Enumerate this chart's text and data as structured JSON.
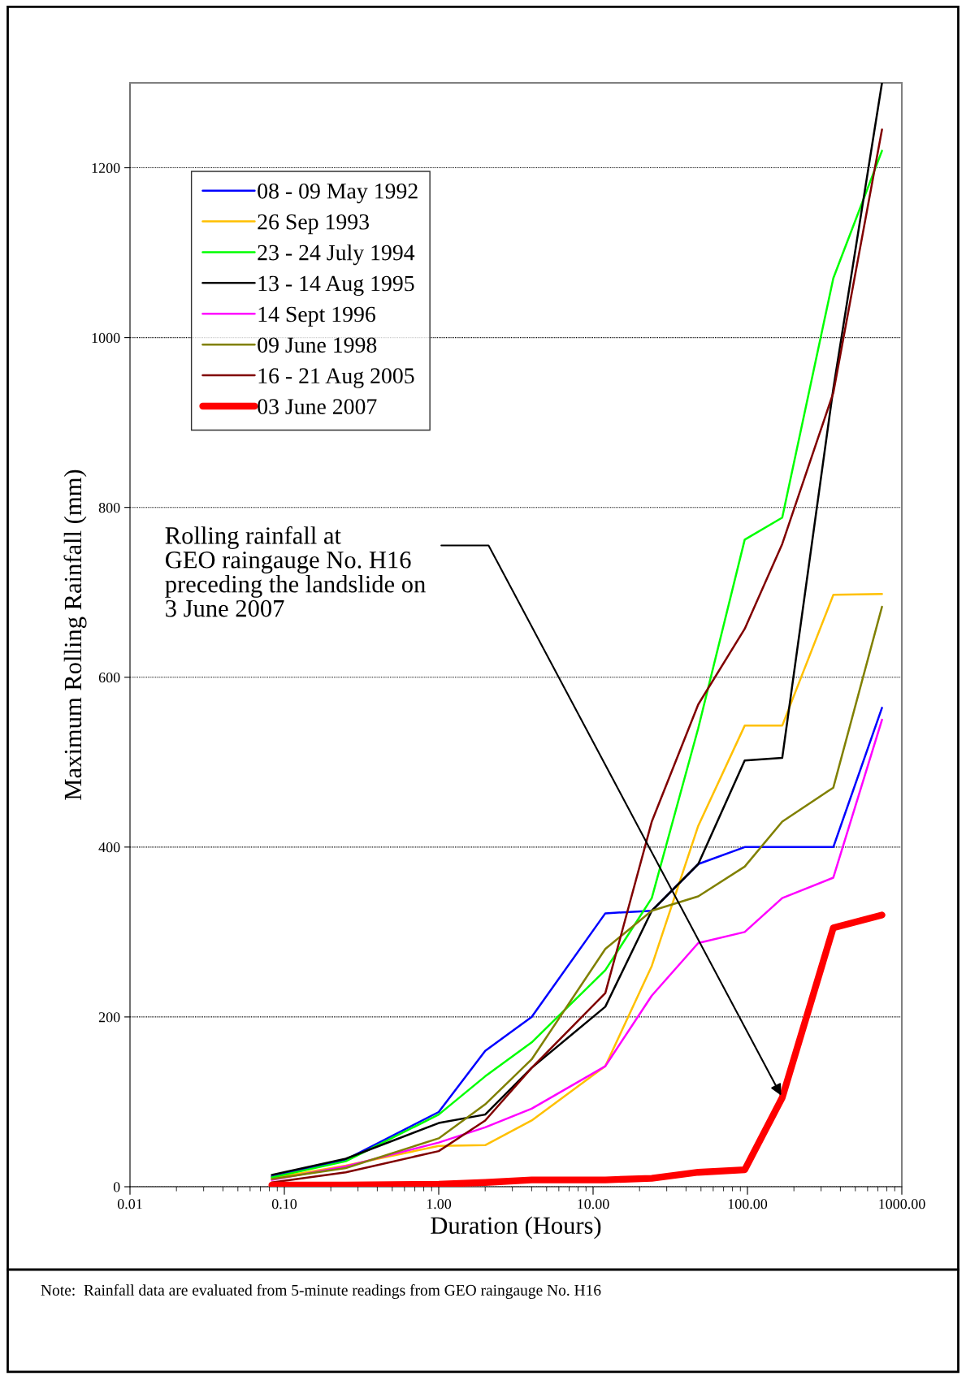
{
  "chart_data": {
    "type": "line",
    "xlabel": "Duration (Hours)",
    "ylabel": "Maximum Rolling Rainfall (mm)",
    "log": "x",
    "grid": "y",
    "legend": "top left",
    "line_style": "solid",
    "marker": "none",
    "x": [
      0.083,
      0.25,
      1,
      2,
      4,
      12,
      24,
      48,
      96,
      168,
      360,
      744
    ],
    "xlim": [
      0.01,
      1000
    ],
    "xticks": [
      {
        "value": 0.01,
        "label": "0.01"
      },
      {
        "value": 0.1,
        "label": "0.10"
      },
      {
        "value": 1,
        "label": "1.00"
      },
      {
        "value": 10,
        "label": "10.00"
      },
      {
        "value": 100,
        "label": "100.00"
      },
      {
        "value": 1000,
        "label": "1000.00"
      }
    ],
    "ylim": [
      0,
      1300
    ],
    "yticks": [
      0,
      200,
      400,
      600,
      800,
      1000,
      1200
    ],
    "series": [
      {
        "name": "08 - 09 May 1992",
        "color": "#0000ff",
        "values": [
          12,
          32,
          88,
          160,
          200,
          322,
          325,
          380,
          400,
          400,
          400,
          564
        ]
      },
      {
        "name": "26 Sep 1993",
        "color": "#ffc000",
        "values": [
          10,
          25,
          48,
          49,
          78,
          142,
          260,
          425,
          543,
          543,
          697,
          698
        ]
      },
      {
        "name": "23 - 24 July 1994",
        "color": "#00ff00",
        "values": [
          11,
          30,
          85,
          130,
          170,
          255,
          340,
          540,
          762,
          788,
          1070,
          1220
        ]
      },
      {
        "name": "13 - 14 Aug 1995",
        "color": "#000000",
        "values": [
          14,
          33,
          75,
          85,
          140,
          212,
          325,
          380,
          502,
          505,
          940,
          1300
        ]
      },
      {
        "name": "14 Sept 1996",
        "color": "#ff00ff",
        "values": [
          8,
          24,
          52,
          70,
          92,
          142,
          225,
          287,
          300,
          340,
          364,
          550
        ]
      },
      {
        "name": "09 June 1998",
        "color": "#808000",
        "values": [
          9,
          22,
          57,
          97,
          150,
          280,
          325,
          342,
          377,
          430,
          470,
          683
        ]
      },
      {
        "name": "16 - 21 Aug 2005",
        "color": "#800000",
        "values": [
          5,
          17,
          42,
          78,
          140,
          228,
          430,
          568,
          657,
          757,
          935,
          1245
        ]
      },
      {
        "name": "03 June 2007",
        "color": "#ff0000",
        "values": [
          2,
          2,
          3,
          5,
          8,
          8,
          10,
          17,
          20,
          105,
          305,
          320
        ]
      }
    ],
    "annotations": [
      {
        "text": "Rolling rainfall at\nGEO raingauge No. H16\npreceding the landslide on\n3 June 2007",
        "x": 168,
        "y": 105
      },
      "Note:  Rainfall data are evaluated from 5-minute readings from GEO raingauge No. H16"
    ]
  }
}
